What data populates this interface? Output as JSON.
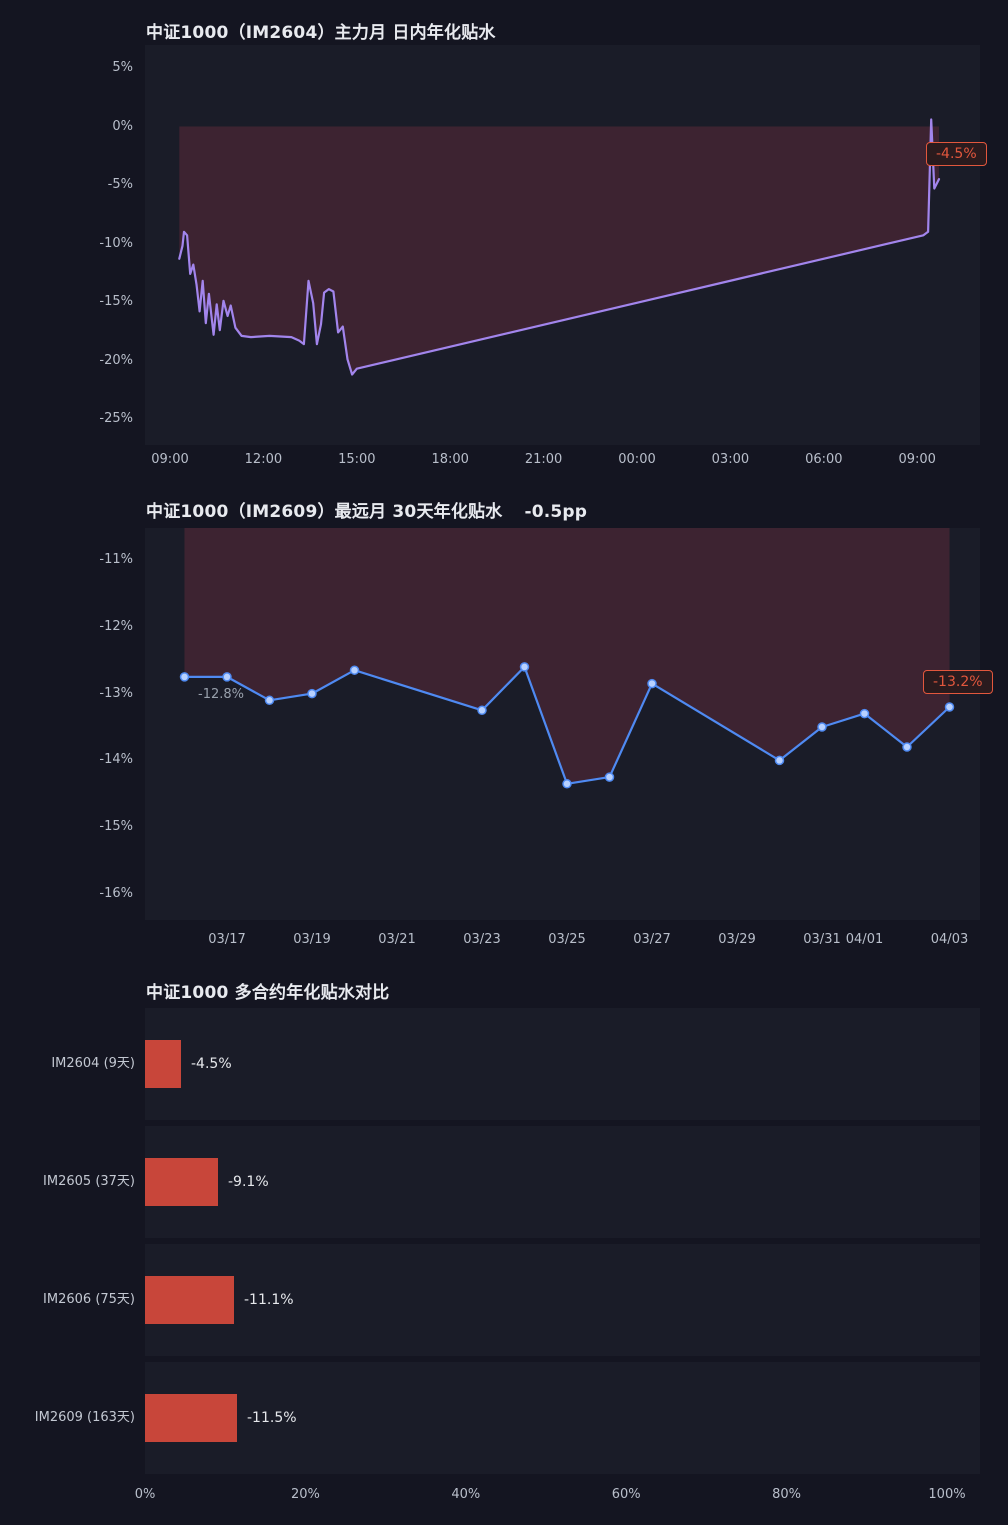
{
  "page": {
    "background": "#141521",
    "panel": "#1a1c28"
  },
  "chart_data": [
    {
      "type": "line",
      "title": "中证1000（IM2604）主力月 日内年化贴水",
      "x_unit": "hours from 09:00",
      "ylim": [
        -25,
        5
      ],
      "legend": "none",
      "grid": "off",
      "annotation": {
        "text": "-4.5%",
        "color": "#e2573d"
      },
      "colors": {
        "line": "#a285ec",
        "fill": "rgba(206,64,84,0.20)",
        "marker": "#b8d1ff"
      },
      "fill_to": 0,
      "show_markers": false,
      "y_ticks": [
        {
          "v": 5,
          "label": "5%"
        },
        {
          "v": 0,
          "label": "0%"
        },
        {
          "v": -5,
          "label": "-5%"
        },
        {
          "v": -10,
          "label": "-10%"
        },
        {
          "v": -15,
          "label": "-15%"
        },
        {
          "v": -20,
          "label": "-20%"
        },
        {
          "v": -25,
          "label": "-25%"
        }
      ],
      "x_ticks": [
        {
          "x": 0,
          "label": "09:00"
        },
        {
          "x": 3,
          "label": "12:00"
        },
        {
          "x": 6,
          "label": "15:00"
        },
        {
          "x": 9,
          "label": "18:00"
        },
        {
          "x": 12,
          "label": "21:00"
        },
        {
          "x": 15,
          "label": "00:00"
        },
        {
          "x": 18,
          "label": "03:00"
        },
        {
          "x": 21,
          "label": "06:00"
        },
        {
          "x": 24,
          "label": "09:00"
        }
      ],
      "points": [
        [
          0.3,
          -11.3
        ],
        [
          0.4,
          -10.2
        ],
        [
          0.45,
          -9.0
        ],
        [
          0.55,
          -9.3
        ],
        [
          0.65,
          -12.6
        ],
        [
          0.75,
          -11.8
        ],
        [
          0.85,
          -13.5
        ],
        [
          0.95,
          -15.8
        ],
        [
          1.05,
          -13.2
        ],
        [
          1.15,
          -16.8
        ],
        [
          1.25,
          -14.3
        ],
        [
          1.4,
          -17.8
        ],
        [
          1.5,
          -15.2
        ],
        [
          1.6,
          -17.4
        ],
        [
          1.72,
          -14.9
        ],
        [
          1.85,
          -16.2
        ],
        [
          1.95,
          -15.3
        ],
        [
          2.1,
          -17.2
        ],
        [
          2.3,
          -17.9
        ],
        [
          2.6,
          -18.0
        ],
        [
          3.2,
          -17.9
        ],
        [
          3.9,
          -18.0
        ],
        [
          4.15,
          -18.3
        ],
        [
          4.3,
          -18.6
        ],
        [
          4.45,
          -13.2
        ],
        [
          4.6,
          -15.1
        ],
        [
          4.72,
          -18.6
        ],
        [
          4.85,
          -16.9
        ],
        [
          4.95,
          -14.2
        ],
        [
          5.1,
          -13.9
        ],
        [
          5.25,
          -14.1
        ],
        [
          5.4,
          -17.6
        ],
        [
          5.55,
          -17.1
        ],
        [
          5.7,
          -19.9
        ],
        [
          5.85,
          -21.2
        ],
        [
          6.0,
          -20.7
        ],
        [
          24.2,
          -9.3
        ],
        [
          24.35,
          -9.0
        ],
        [
          24.45,
          0.6
        ],
        [
          24.55,
          -5.3
        ],
        [
          24.7,
          -4.5
        ]
      ]
    },
    {
      "type": "line",
      "title": "中证1000（IM2609）最远月 30天年化贴水",
      "subtitle": "-0.5pp",
      "ylim": [
        -16,
        -11
      ],
      "legend": "none",
      "grid": "off",
      "annotation": {
        "text": "-13.2%",
        "color": "#e2573d"
      },
      "point_label": {
        "text": "-12.8%"
      },
      "colors": {
        "line": "#4f8af2",
        "fill": "rgba(206,64,84,0.20)",
        "marker": "#b8d1ff"
      },
      "fill_to": "top",
      "show_markers": true,
      "y_ticks": [
        {
          "v": -11,
          "label": "-11%"
        },
        {
          "v": -12,
          "label": "-12%"
        },
        {
          "v": -13,
          "label": "-13%"
        },
        {
          "v": -14,
          "label": "-14%"
        },
        {
          "v": -15,
          "label": "-15%"
        },
        {
          "v": -16,
          "label": "-16%"
        }
      ],
      "x_ticks": [
        {
          "x": 0,
          "label": "03/17"
        },
        {
          "x": 2,
          "label": "03/19"
        },
        {
          "x": 4,
          "label": "03/21"
        },
        {
          "x": 6,
          "label": "03/23"
        },
        {
          "x": 8,
          "label": "03/25"
        },
        {
          "x": 10,
          "label": "03/27"
        },
        {
          "x": 12,
          "label": "03/29"
        },
        {
          "x": 14,
          "label": "03/31"
        },
        {
          "x": 15,
          "label": "04/01"
        },
        {
          "x": 17,
          "label": "04/03"
        }
      ],
      "dates": [
        "03/16",
        "03/17",
        "03/18",
        "03/19",
        "03/20",
        "03/23",
        "03/24",
        "03/25",
        "03/26",
        "03/27",
        "03/30",
        "03/31",
        "04/01",
        "04/02",
        "04/03"
      ],
      "points": [
        [
          -1,
          -12.75
        ],
        [
          0,
          -12.75
        ],
        [
          1,
          -13.1
        ],
        [
          2,
          -13.0
        ],
        [
          3,
          -12.65
        ],
        [
          6,
          -13.25
        ],
        [
          7,
          -12.6
        ],
        [
          8,
          -14.35
        ],
        [
          9,
          -14.25
        ],
        [
          10,
          -12.85
        ],
        [
          13,
          -14.0
        ],
        [
          14,
          -13.5
        ],
        [
          15,
          -13.3
        ],
        [
          16,
          -13.8
        ],
        [
          17,
          -13.2
        ]
      ]
    },
    {
      "type": "bar",
      "orientation": "horizontal",
      "title": "中证1000 多合约年化贴水对比",
      "xlim": [
        0,
        100
      ],
      "bar_color": "#c8463a",
      "categories": [
        "IM2604 (9天)",
        "IM2605 (37天)",
        "IM2606 (75天)",
        "IM2609 (163天)"
      ],
      "values": [
        4.5,
        9.1,
        11.1,
        11.5
      ],
      "value_labels": [
        "-4.5%",
        "-9.1%",
        "-11.1%",
        "-11.5%"
      ],
      "x_ticks": [
        {
          "x": 0,
          "label": "0%"
        },
        {
          "x": 20,
          "label": "20%"
        },
        {
          "x": 40,
          "label": "40%"
        },
        {
          "x": 60,
          "label": "60%"
        },
        {
          "x": 80,
          "label": "80%"
        },
        {
          "x": 100,
          "label": "100%"
        }
      ]
    }
  ]
}
